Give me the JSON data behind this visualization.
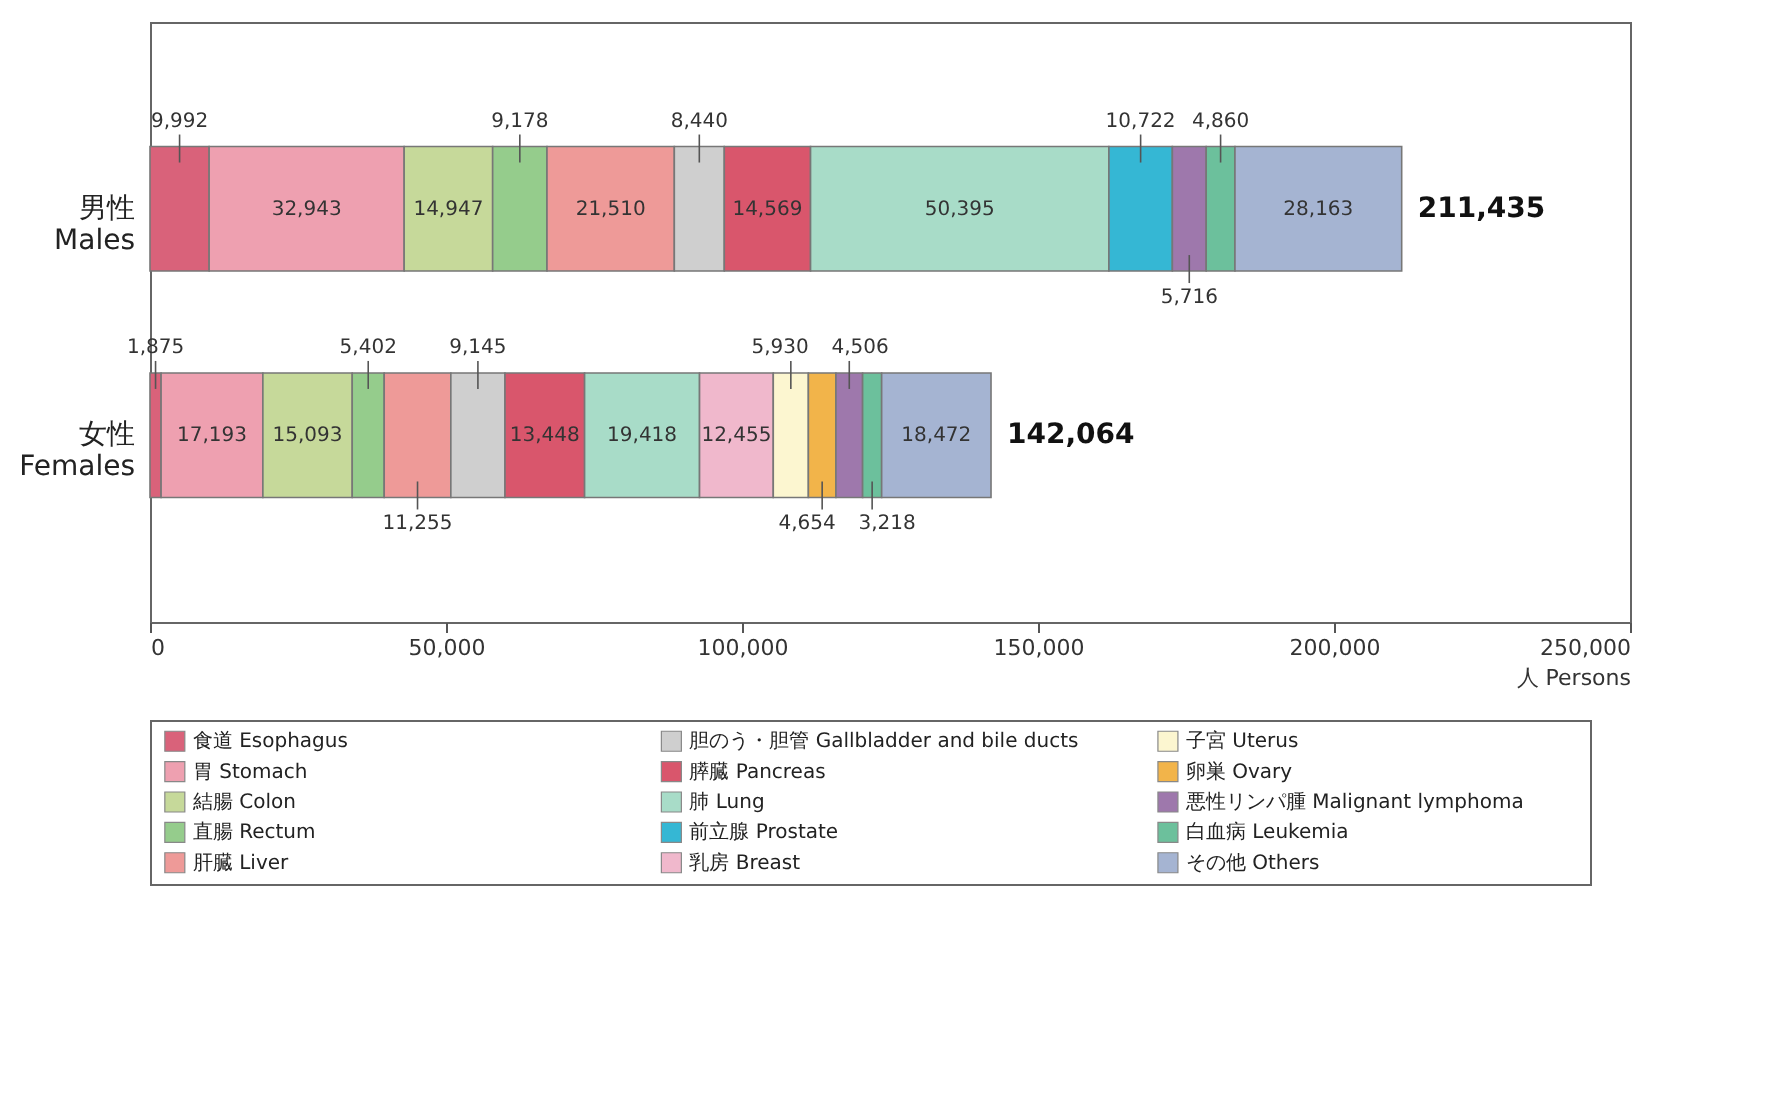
{
  "chart_data": {
    "type": "bar",
    "orientation": "horizontal",
    "stacked": true,
    "categories": [
      "男性 Males",
      "女性 Females"
    ],
    "xlabel": "人 Persons",
    "xlim": [
      0,
      250000
    ],
    "xticks": [
      0,
      {
        "value": 50000,
        "label": "50,000"
      },
      {
        "value": 100000,
        "label": "100,000"
      },
      {
        "value": 150000,
        "label": "150,000"
      },
      {
        "value": 200000,
        "label": "200,000"
      },
      {
        "value": 250000,
        "label": "250,000"
      }
    ],
    "grid": false,
    "legend": "bottom",
    "totals": [
      "211,435",
      "142,064"
    ],
    "series": [
      {
        "name": "食道 Esophagus",
        "color": "#d9627a",
        "values": [
          9992,
          1875
        ],
        "value_labels": [
          "9,992",
          "1,875"
        ]
      },
      {
        "name": "胃 Stomach",
        "color": "#eea0b0",
        "values": [
          32943,
          17193
        ],
        "value_labels": [
          "32,943",
          "17,193"
        ]
      },
      {
        "name": "結腸 Colon",
        "color": "#c6d99a",
        "values": [
          14947,
          15093
        ],
        "value_labels": [
          "14,947",
          "15,093"
        ]
      },
      {
        "name": "直腸 Rectum",
        "color": "#95cc8c",
        "values": [
          9178,
          5402
        ],
        "value_labels": [
          "9,178",
          "5,402"
        ]
      },
      {
        "name": "肝臓 Liver",
        "color": "#ee9a98",
        "values": [
          21510,
          11255
        ],
        "value_labels": [
          "21,510",
          "11,255"
        ]
      },
      {
        "name": "胆のう・胆管 Gallbladder and bile ducts",
        "color": "#cfcfcf",
        "values": [
          8440,
          9145
        ],
        "value_labels": [
          "8,440",
          "9,145"
        ]
      },
      {
        "name": "膵臓 Pancreas",
        "color": "#d9566c",
        "values": [
          14569,
          13448
        ],
        "value_labels": [
          "14,569",
          "13,448"
        ]
      },
      {
        "name": "肺 Lung",
        "color": "#a8dcc8",
        "values": [
          50395,
          19418
        ],
        "value_labels": [
          "50,395",
          "19,418"
        ]
      },
      {
        "name": "前立腺 Prostate",
        "color": "#35b7d4",
        "values": [
          10722,
          null
        ],
        "value_labels": [
          "10,722",
          null
        ]
      },
      {
        "name": "乳房 Breast",
        "color": "#f0b8cc",
        "values": [
          null,
          12455
        ],
        "value_labels": [
          null,
          "12,455"
        ]
      },
      {
        "name": "子宮 Uterus",
        "color": "#fcf6d0",
        "values": [
          null,
          5930
        ],
        "value_labels": [
          null,
          "5,930"
        ]
      },
      {
        "name": "卵巣 Ovary",
        "color": "#f2b44a",
        "values": [
          null,
          4654
        ],
        "value_labels": [
          null,
          "4,654"
        ]
      },
      {
        "name": "悪性リンパ腫 Malignant lymphoma",
        "color": "#9e78ac",
        "values": [
          5716,
          4506
        ],
        "value_labels": [
          "5,716",
          "4,506"
        ]
      },
      {
        "name": "白血病 Leukemia",
        "color": "#6cc09c",
        "values": [
          4860,
          3218
        ],
        "value_labels": [
          "4,860",
          "3,218"
        ]
      },
      {
        "name": "その他 Others",
        "color": "#a5b4d2",
        "values": [
          28163,
          18472
        ],
        "value_labels": [
          "28,163",
          "18,472"
        ]
      }
    ]
  }
}
